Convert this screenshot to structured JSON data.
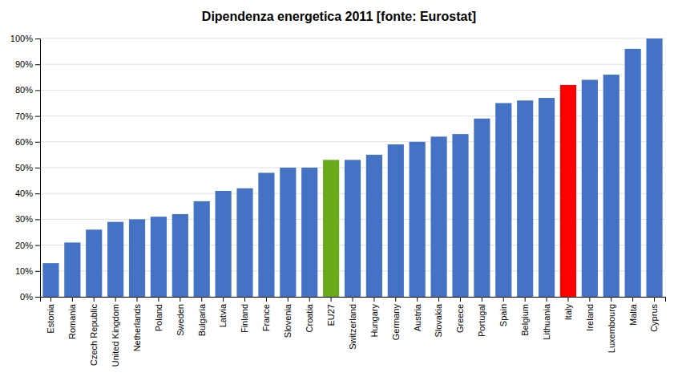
{
  "chart_data": {
    "type": "bar",
    "title": "Dipendenza energetica 2011 [fonte: Eurostat]",
    "categories": [
      "Estonia",
      "Romania",
      "Czech Republic",
      "United Kingdom",
      "Netherlands",
      "Poland",
      "Sweden",
      "Bulgaria",
      "Latvia",
      "Finland",
      "France",
      "Slovenia",
      "Croatia",
      "EU27",
      "Switzerland",
      "Hungary",
      "Germany",
      "Austria",
      "Slovakia",
      "Greece",
      "Portugal",
      "Spain",
      "Belgium",
      "Lithuania",
      "Italy",
      "Ireland",
      "Luxembourg",
      "Malta",
      "Cyprus"
    ],
    "values": [
      13,
      21,
      26,
      29,
      30,
      31,
      32,
      37,
      41,
      42,
      48,
      50,
      50,
      53,
      53,
      55,
      59,
      60,
      62,
      63,
      69,
      75,
      76,
      77,
      82,
      84,
      86,
      96,
      100
    ],
    "colors": [
      "#4472C4",
      "#4472C4",
      "#4472C4",
      "#4472C4",
      "#4472C4",
      "#4472C4",
      "#4472C4",
      "#4472C4",
      "#4472C4",
      "#4472C4",
      "#4472C4",
      "#4472C4",
      "#4472C4",
      "#6AAB1E",
      "#4472C4",
      "#4472C4",
      "#4472C4",
      "#4472C4",
      "#4472C4",
      "#4472C4",
      "#4472C4",
      "#4472C4",
      "#4472C4",
      "#4472C4",
      "#FF0000",
      "#4472C4",
      "#4472C4",
      "#4472C4",
      "#4472C4"
    ],
    "ylim": [
      0,
      100
    ],
    "yticks": [
      {
        "value": 0,
        "label": "0%"
      },
      {
        "value": 10,
        "label": "10%"
      },
      {
        "value": 20,
        "label": "20%"
      },
      {
        "value": 30,
        "label": "30%"
      },
      {
        "value": 40,
        "label": "40%"
      },
      {
        "value": 50,
        "label": "50%"
      },
      {
        "value": 60,
        "label": "60%"
      },
      {
        "value": 70,
        "label": "70%"
      },
      {
        "value": 80,
        "label": "80%"
      },
      {
        "value": 90,
        "label": "90%"
      },
      {
        "value": 100,
        "label": "100%"
      }
    ],
    "grid": true
  }
}
